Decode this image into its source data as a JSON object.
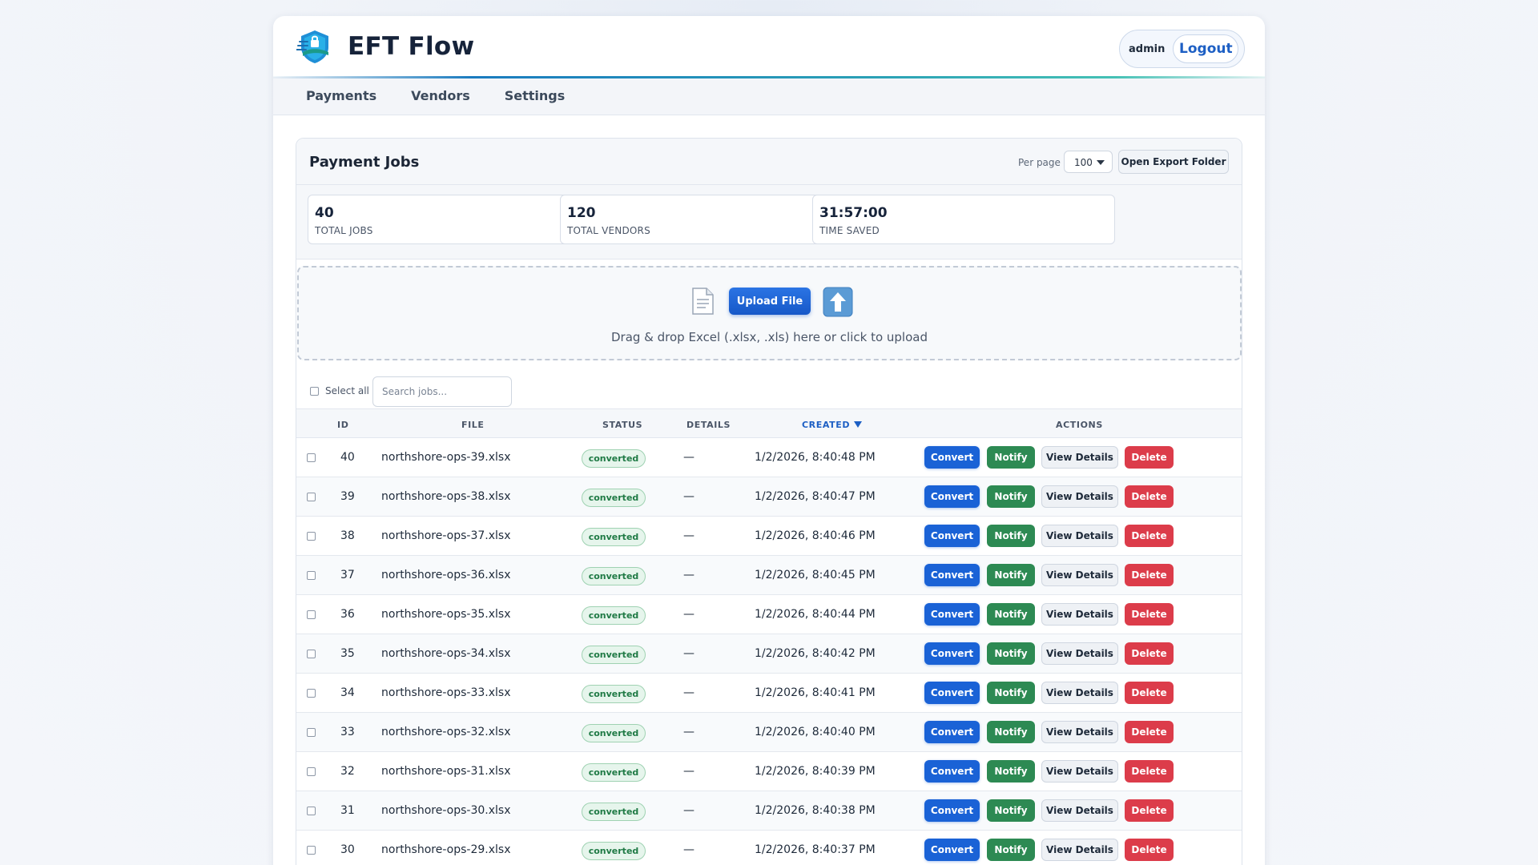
{
  "app": {
    "title": "EFT Flow"
  },
  "user": {
    "name": "admin",
    "logout_label": "Logout"
  },
  "nav": [
    "Payments",
    "Vendors",
    "Settings"
  ],
  "panel": {
    "title": "Payment Jobs",
    "per_page_label": "Per page",
    "per_page_value": "100",
    "export_label": "Open Export Folder"
  },
  "stats": [
    {
      "value": "40",
      "label": "TOTAL JOBS"
    },
    {
      "value": "120",
      "label": "TOTAL VENDORS"
    },
    {
      "value": "31:57:00",
      "label": "TIME SAVED"
    }
  ],
  "upload": {
    "button_label": "Upload File",
    "hint": "Drag & drop Excel (.xlsx, .xls) here or click to upload",
    "doc_icon": "document-icon",
    "arrow_icon": "up-arrow-icon"
  },
  "toolbar": {
    "select_all_label": "Select all",
    "search_placeholder": "Search jobs..."
  },
  "table": {
    "columns": [
      "ID",
      "FILE",
      "STATUS",
      "DETAILS",
      "CREATED",
      "ACTIONS"
    ],
    "sorted_column": "CREATED",
    "sort_direction": "desc",
    "actions": [
      "Convert",
      "Notify",
      "View Details",
      "Delete"
    ],
    "rows": [
      {
        "id": "40",
        "file": "northshore-ops-39.xlsx",
        "status": "converted",
        "details": "—",
        "created": "1/2/2026, 8:40:48 PM"
      },
      {
        "id": "39",
        "file": "northshore-ops-38.xlsx",
        "status": "converted",
        "details": "—",
        "created": "1/2/2026, 8:40:47 PM"
      },
      {
        "id": "38",
        "file": "northshore-ops-37.xlsx",
        "status": "converted",
        "details": "—",
        "created": "1/2/2026, 8:40:46 PM"
      },
      {
        "id": "37",
        "file": "northshore-ops-36.xlsx",
        "status": "converted",
        "details": "—",
        "created": "1/2/2026, 8:40:45 PM"
      },
      {
        "id": "36",
        "file": "northshore-ops-35.xlsx",
        "status": "converted",
        "details": "—",
        "created": "1/2/2026, 8:40:44 PM"
      },
      {
        "id": "35",
        "file": "northshore-ops-34.xlsx",
        "status": "converted",
        "details": "—",
        "created": "1/2/2026, 8:40:42 PM"
      },
      {
        "id": "34",
        "file": "northshore-ops-33.xlsx",
        "status": "converted",
        "details": "—",
        "created": "1/2/2026, 8:40:41 PM"
      },
      {
        "id": "33",
        "file": "northshore-ops-32.xlsx",
        "status": "converted",
        "details": "—",
        "created": "1/2/2026, 8:40:40 PM"
      },
      {
        "id": "32",
        "file": "northshore-ops-31.xlsx",
        "status": "converted",
        "details": "—",
        "created": "1/2/2026, 8:40:39 PM"
      },
      {
        "id": "31",
        "file": "northshore-ops-30.xlsx",
        "status": "converted",
        "details": "—",
        "created": "1/2/2026, 8:40:38 PM"
      },
      {
        "id": "30",
        "file": "northshore-ops-29.xlsx",
        "status": "converted",
        "details": "—",
        "created": "1/2/2026, 8:40:37 PM"
      }
    ]
  },
  "colors": {
    "primary": "#1a62d6",
    "notify": "#2d8a53",
    "delete": "#dc3c4a",
    "status_converted": "#1f7a45"
  }
}
